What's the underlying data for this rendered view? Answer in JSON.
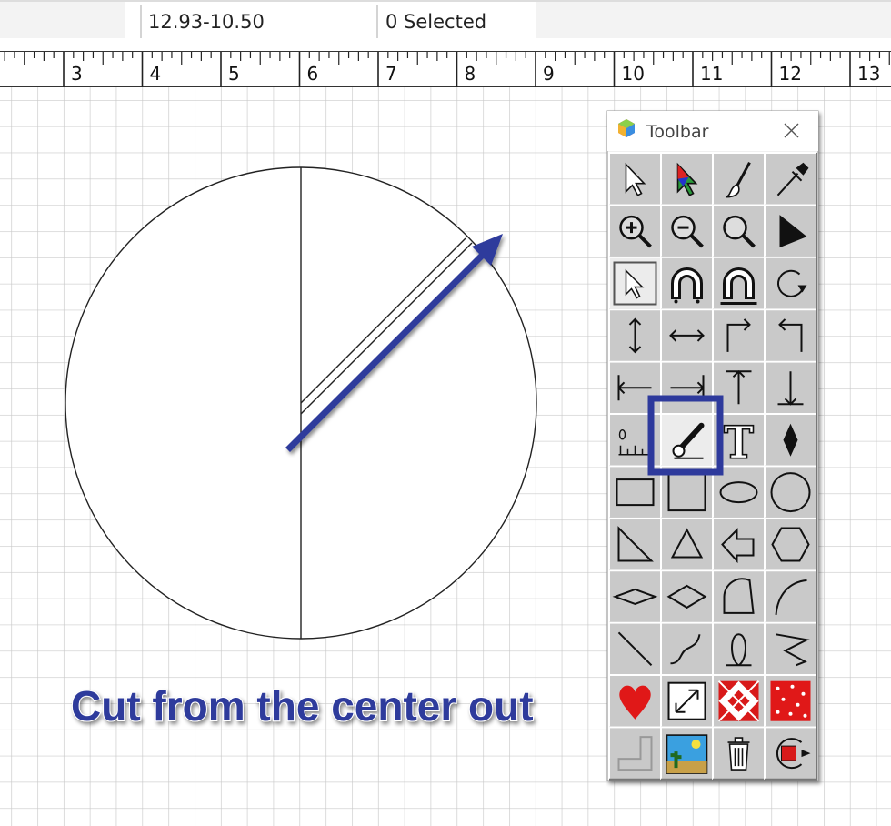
{
  "status": {
    "coordinates": "12.93-10.50",
    "selection": "0 Selected"
  },
  "ruler": {
    "labels": [
      "3",
      "4",
      "5",
      "6",
      "7",
      "8",
      "9",
      "10",
      "11",
      "12",
      "13"
    ]
  },
  "toolbar": {
    "title": "Toolbar"
  },
  "annotation": "Cut from the center out"
}
